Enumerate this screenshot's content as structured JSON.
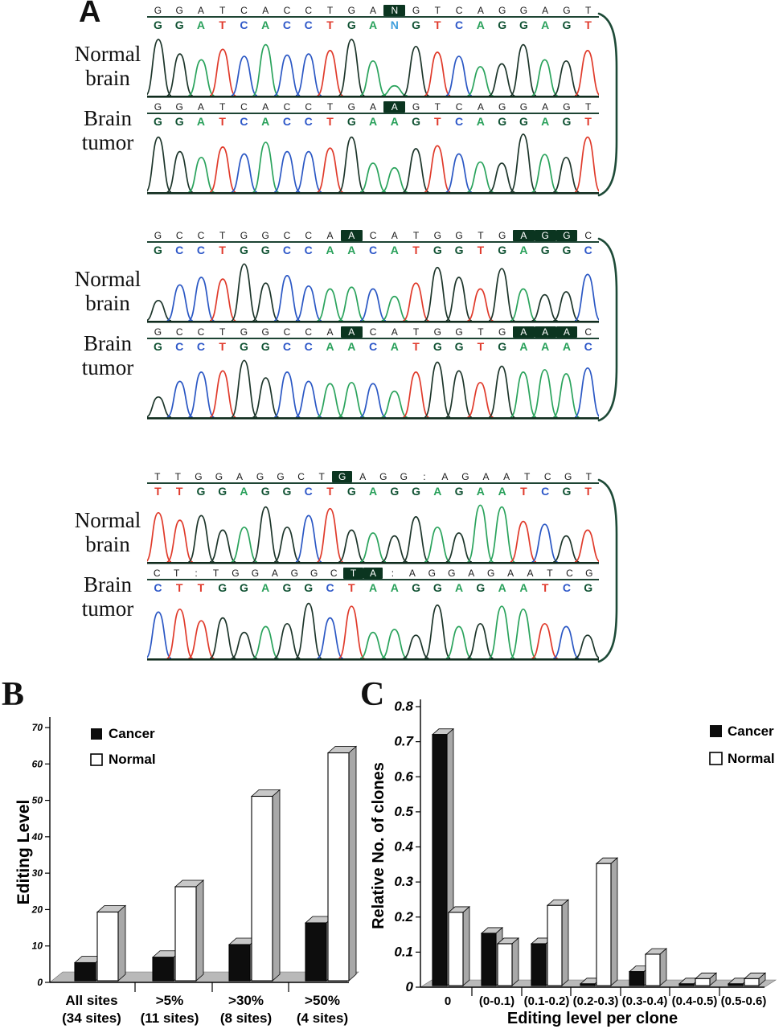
{
  "figure": {
    "panel_a_label": "A",
    "panel_b_label": "B",
    "panel_c_label": "C"
  },
  "colors": {
    "base_G": "#0f5132",
    "base_A": "#28a05a",
    "base_T": "#e0392b",
    "base_C": "#2d57c8",
    "base_N": "#3f9fdc",
    "trace_G": "#1c352a",
    "trace_A": "#2aa35c",
    "trace_T": "#e03a2a",
    "trace_C": "#2a57c4",
    "highlight_bg": "#0b3520",
    "highlight_fg": "#ffffff",
    "baseline": "#102c1e",
    "bracket": "#1d4a37",
    "bar_black": "#0d0d0d",
    "bar_white": "#ffffff",
    "face_top": "#c8c8c8",
    "face_side": "#a8a8a8",
    "floor": "#b9b9b9"
  },
  "chromatograms": {
    "blocks": [
      {
        "pairs": [
          {
            "label_lines": [
              "Normal",
              "brain"
            ],
            "call_row": [
              "G",
              "G",
              "A",
              "T",
              "C",
              "A",
              "C",
              "C",
              "T",
              "G",
              "A",
              {
                "t": "N",
                "hl": true
              },
              "G",
              "T",
              "C",
              "A",
              "G",
              "G",
              "A",
              "G",
              "T"
            ],
            "base_row": "GGATCACCTGANGTCAGGAGT",
            "base_overrides": {
              "11": "#3f9fdc"
            },
            "peaks": [
              [
                "G",
                0.97
              ],
              [
                "G",
                0.72
              ],
              [
                "A",
                0.62
              ],
              [
                "T",
                0.8
              ],
              [
                "C",
                0.68
              ],
              [
                "A",
                0.88
              ],
              [
                "C",
                0.7
              ],
              [
                "C",
                0.72
              ],
              [
                "T",
                0.78
              ],
              [
                "G",
                0.97
              ],
              [
                "A",
                0.6
              ],
              [
                "A",
                0.17
              ],
              [
                "G",
                0.85
              ],
              [
                "T",
                0.75
              ],
              [
                "C",
                0.68
              ],
              [
                "A",
                0.5
              ],
              [
                "G",
                0.55
              ],
              [
                "G",
                0.88
              ],
              [
                "A",
                0.62
              ],
              [
                "G",
                0.6
              ],
              [
                "T",
                0.78
              ]
            ]
          },
          {
            "label_lines": [
              "Brain",
              "tumor"
            ],
            "call_row": [
              "G",
              "G",
              "A",
              "T",
              "C",
              "A",
              "C",
              "C",
              "T",
              "G",
              "A",
              {
                "t": "A",
                "hl": true
              },
              "G",
              "T",
              "C",
              "A",
              "G",
              "G",
              "A",
              "G",
              "T"
            ],
            "base_row": "GGATCACCTGAAGTCAGGAGT",
            "base_overrides": {},
            "peaks": [
              [
                "G",
                0.95
              ],
              [
                "G",
                0.7
              ],
              [
                "A",
                0.6
              ],
              [
                "T",
                0.78
              ],
              [
                "C",
                0.66
              ],
              [
                "A",
                0.86
              ],
              [
                "C",
                0.7
              ],
              [
                "C",
                0.7
              ],
              [
                "T",
                0.76
              ],
              [
                "G",
                0.95
              ],
              [
                "A",
                0.5
              ],
              [
                "A",
                0.42
              ],
              [
                "G",
                0.75
              ],
              [
                "T",
                0.8
              ],
              [
                "C",
                0.66
              ],
              [
                "A",
                0.52
              ],
              [
                "G",
                0.5
              ],
              [
                "G",
                1.0
              ],
              [
                "A",
                0.65
              ],
              [
                "G",
                0.6
              ],
              [
                "T",
                0.95
              ]
            ]
          }
        ]
      },
      {
        "pairs": [
          {
            "label_lines": [
              "Normal",
              "brain"
            ],
            "call_row": [
              "G",
              "C",
              "C",
              "T",
              "G",
              "G",
              "C",
              "C",
              "A",
              {
                "t": "A",
                "hl": true
              },
              "C",
              "A",
              "T",
              "G",
              "G",
              "T",
              "G",
              {
                "t": "A",
                "hl": true
              },
              {
                "t": "G",
                "hl": true
              },
              {
                "t": "G",
                "hl": true
              },
              "C"
            ],
            "base_row": "GCCTGGCCAACATGGTGAGGC",
            "base_overrides": {},
            "peaks": [
              [
                "G",
                0.35
              ],
              [
                "C",
                0.62
              ],
              [
                "C",
                0.75
              ],
              [
                "T",
                0.72
              ],
              [
                "G",
                0.98
              ],
              [
                "G",
                0.65
              ],
              [
                "C",
                0.78
              ],
              [
                "C",
                0.6
              ],
              [
                "A",
                0.55
              ],
              [
                "A",
                0.58
              ],
              [
                "C",
                0.55
              ],
              [
                "A",
                0.42
              ],
              [
                "T",
                0.65
              ],
              [
                "G",
                0.92
              ],
              [
                "G",
                0.75
              ],
              [
                "T",
                0.55
              ],
              [
                "G",
                0.9
              ],
              [
                "A",
                0.55
              ],
              [
                "G",
                0.45
              ],
              [
                "G",
                0.5
              ],
              [
                "C",
                0.8
              ]
            ]
          },
          {
            "label_lines": [
              "Brain",
              "tumor"
            ],
            "call_row": [
              "G",
              "C",
              "C",
              "T",
              "G",
              "G",
              "C",
              "C",
              "A",
              {
                "t": "A",
                "hl": true
              },
              "C",
              "A",
              "T",
              "G",
              "G",
              "T",
              "G",
              {
                "t": "A",
                "hl": true
              },
              {
                "t": "A",
                "hl": true
              },
              {
                "t": "A",
                "hl": true
              },
              "C"
            ],
            "base_row": "GCCTGGCCAACATGGTGAAAC",
            "base_overrides": {},
            "peaks": [
              [
                "G",
                0.35
              ],
              [
                "C",
                0.62
              ],
              [
                "C",
                0.78
              ],
              [
                "T",
                0.8
              ],
              [
                "G",
                0.98
              ],
              [
                "G",
                0.68
              ],
              [
                "C",
                0.78
              ],
              [
                "C",
                0.62
              ],
              [
                "A",
                0.58
              ],
              [
                "A",
                0.6
              ],
              [
                "C",
                0.58
              ],
              [
                "A",
                0.45
              ],
              [
                "T",
                0.78
              ],
              [
                "G",
                0.95
              ],
              [
                "G",
                0.8
              ],
              [
                "T",
                0.6
              ],
              [
                "G",
                0.88
              ],
              [
                "A",
                0.78
              ],
              [
                "A",
                0.82
              ],
              [
                "A",
                0.75
              ],
              [
                "C",
                0.85
              ]
            ]
          }
        ]
      },
      {
        "pairs": [
          {
            "label_lines": [
              "Normal",
              "brain"
            ],
            "call_row": [
              "T",
              "T",
              "G",
              "G",
              "A",
              "G",
              "G",
              "C",
              "T",
              {
                "t": "G",
                "hl": true
              },
              "A",
              "G",
              "G",
              ":",
              "A",
              "G",
              "A",
              "A",
              "T",
              "C",
              "G",
              "T"
            ],
            "base_row": "TTGGAGGCTGAGGAGAATCGT",
            "base_overrides": {},
            "peaks": [
              [
                "T",
                0.85
              ],
              [
                "T",
                0.72
              ],
              [
                "G",
                0.8
              ],
              [
                "G",
                0.55
              ],
              [
                "A",
                0.6
              ],
              [
                "G",
                0.95
              ],
              [
                "G",
                0.6
              ],
              [
                "C",
                0.8
              ],
              [
                "T",
                0.92
              ],
              [
                "G",
                0.55
              ],
              [
                "A",
                0.5
              ],
              [
                "G",
                0.45
              ],
              [
                "G",
                0.78
              ],
              [
                "A",
                0.6
              ],
              [
                "G",
                0.5
              ],
              [
                "A",
                0.98
              ],
              [
                "A",
                0.95
              ],
              [
                "T",
                0.7
              ],
              [
                "C",
                0.65
              ],
              [
                "G",
                0.45
              ],
              [
                "T",
                0.55
              ]
            ]
          },
          {
            "label_lines": [
              "Brain",
              "tumor"
            ],
            "call_row": [
              "C",
              "T",
              ":",
              "T",
              "G",
              "G",
              "A",
              "G",
              "G",
              "C",
              {
                "t": "T",
                "hl": true
              },
              {
                "t": "A",
                "hl": true
              },
              ":",
              "A",
              "G",
              "G",
              "A",
              "G",
              "A",
              "A",
              "T",
              "C",
              "G"
            ],
            "base_row": "CTTGGAGGCTAAGGAGAATCG",
            "base_overrides": {},
            "peaks": [
              [
                "C",
                0.8
              ],
              [
                "T",
                0.85
              ],
              [
                "T",
                0.65
              ],
              [
                "G",
                0.7
              ],
              [
                "G",
                0.45
              ],
              [
                "A",
                0.55
              ],
              [
                "G",
                0.6
              ],
              [
                "G",
                0.95
              ],
              [
                "C",
                0.7
              ],
              [
                "T",
                0.9
              ],
              [
                "A",
                0.45
              ],
              [
                "A",
                0.5
              ],
              [
                "G",
                0.4
              ],
              [
                "G",
                0.92
              ],
              [
                "A",
                0.55
              ],
              [
                "G",
                0.6
              ],
              [
                "A",
                0.9
              ],
              [
                "A",
                0.85
              ],
              [
                "T",
                0.6
              ],
              [
                "C",
                0.55
              ],
              [
                "G",
                0.4
              ]
            ]
          }
        ]
      }
    ]
  },
  "chart_data": [
    {
      "id": "B",
      "type": "bar",
      "title": "",
      "xlabel": "",
      "ylabel": "Editing Level",
      "ylim": [
        0,
        70
      ],
      "ytick_labels": [
        "0",
        "10",
        "20",
        "30",
        "40",
        "50",
        "60",
        "70"
      ],
      "categories": [
        [
          "All sites",
          "(34 sites)"
        ],
        [
          ">5%",
          "(11 sites)"
        ],
        [
          ">30%",
          "(8 sites)"
        ],
        [
          ">50%",
          "(4 sites)"
        ]
      ],
      "series": [
        {
          "name": "Cancer",
          "fill": "#0d0d0d",
          "values": [
            5,
            6.5,
            10,
            16
          ]
        },
        {
          "name": "Normal",
          "fill": "#ffffff",
          "values": [
            19,
            26,
            51,
            63
          ]
        }
      ],
      "legend": [
        "Cancer",
        "Normal"
      ],
      "legend_position": "top-left-inside",
      "grid": false
    },
    {
      "id": "C",
      "type": "bar",
      "title": "",
      "xlabel": "Editing level per clone",
      "ylabel": "Relative No. of clones",
      "ylim": [
        0,
        0.8
      ],
      "ytick_labels": [
        "0",
        "0.1",
        "0.2",
        "0.3",
        "0.4",
        "0.5",
        "0.6",
        "0.7",
        "0.8"
      ],
      "categories": [
        "0",
        "(0-0.1)",
        "(0.1-0.2)",
        "(0.2-0.3)",
        "(0.3-0.4)",
        "(0.4-0.5)",
        "(0.5-0.6)"
      ],
      "series": [
        {
          "name": "Cancer",
          "fill": "#0d0d0d",
          "values": [
            0.72,
            0.15,
            0.12,
            0.005,
            0.04,
            0.005,
            0.005
          ]
        },
        {
          "name": "Normal",
          "fill": "#ffffff",
          "values": [
            0.21,
            0.12,
            0.23,
            0.35,
            0.09,
            0.02,
            0.02
          ]
        }
      ],
      "legend": [
        "Cancer",
        "Normal"
      ],
      "legend_position": "top-right-inside",
      "grid": false
    }
  ]
}
